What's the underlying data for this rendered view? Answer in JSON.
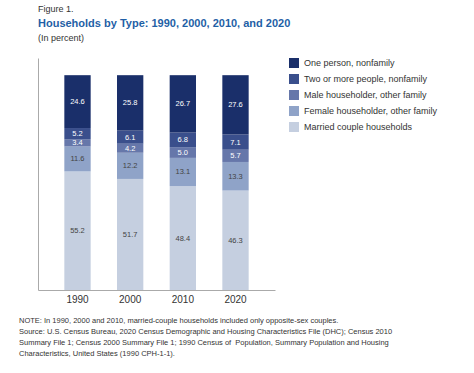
{
  "chart_data": {
    "type": "bar",
    "stacked": true,
    "title": "Households by Type: 1990, 2000, 2010, and 2020",
    "subtitle": "(In percent)",
    "annotations": [
      "Figure 1.",
      "NOTE: In 1990, 2000 and 2010, married-couple households included only opposite-sex couples.",
      "Source: U.S. Census Bureau, 2020 Census Demographic and Housing Characteristics File (DHC); Census 2010",
      "Summary File 1; Census 2000 Summary File 1; 1990 Census of  Population, Summary Population and Housing",
      "Characteristics, United States (1990 CPH-1-1)."
    ],
    "categories": [
      "1990",
      "2000",
      "2010",
      "2020"
    ],
    "series": [
      {
        "name": "Married couple households",
        "color": "#c5cfe0",
        "values": [
          55.2,
          51.7,
          48.4,
          46.3
        ]
      },
      {
        "name": "Female householder, other family",
        "color": "#8fa3c8",
        "values": [
          11.6,
          12.2,
          13.1,
          13.3
        ]
      },
      {
        "name": "Male householder, other family",
        "color": "#6677aa",
        "values": [
          3.4,
          4.2,
          5.0,
          5.7
        ],
        "value_labels": [
          "3.4",
          "4.2",
          "5.0",
          "5.7"
        ]
      },
      {
        "name": "Two or more people, nonfamily",
        "color": "#3a4f8c",
        "values": [
          5.2,
          6.1,
          6.8,
          7.1
        ]
      },
      {
        "name": "One person, nonfamily",
        "color": "#1a2f6a",
        "values": [
          24.6,
          25.8,
          26.7,
          27.6
        ]
      }
    ],
    "ylim": [
      0,
      108
    ],
    "yticks": [],
    "tick_labels": "x",
    "data_labels": true,
    "legend": "right",
    "grid": false
  }
}
